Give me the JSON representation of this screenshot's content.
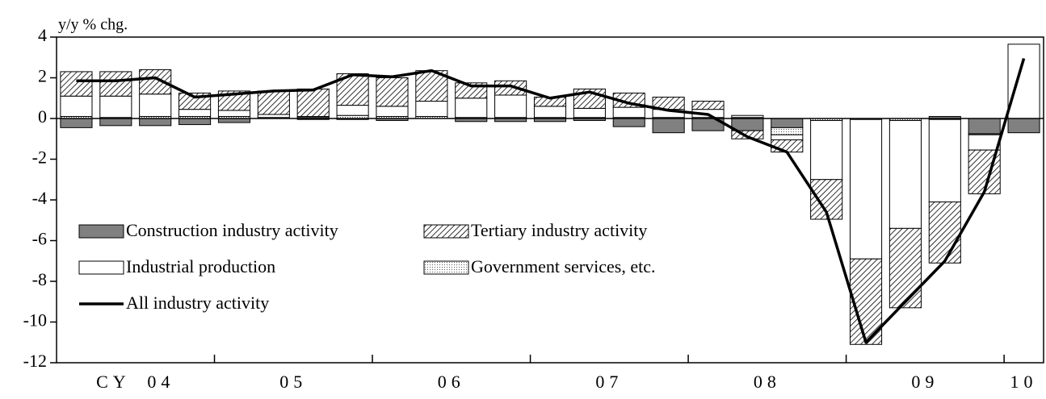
{
  "chart_data": {
    "type": "bar",
    "stacked": true,
    "y_label": "y/y % chg.",
    "categories": [
      "CY 04",
      null,
      null,
      null,
      "05",
      null,
      null,
      null,
      "06",
      null,
      null,
      null,
      "07",
      null,
      null,
      null,
      "08",
      null,
      null,
      null,
      "09",
      null,
      null,
      null,
      "10"
    ],
    "ylim": [
      4,
      -12
    ],
    "yticks": [
      4,
      2,
      0,
      -2,
      -4,
      -6,
      -8,
      -10,
      -12
    ],
    "series": [
      {
        "name": "Construction industry activity",
        "color": "#808080",
        "pattern": "solid",
        "values": [
          -0.45,
          -0.35,
          -0.35,
          -0.3,
          -0.2,
          0,
          -0.05,
          -0.05,
          -0.1,
          0,
          -0.15,
          -0.15,
          -0.15,
          -0.1,
          -0.4,
          -0.7,
          -0.6,
          -0.6,
          -0.45,
          0,
          0,
          0,
          0.1,
          -0.75,
          -0.7
        ]
      },
      {
        "name": "Government services, etc.",
        "color": "#ffffff",
        "pattern": "dots",
        "values": [
          0.1,
          0.05,
          0.1,
          0.1,
          0.1,
          0.05,
          0.05,
          0.15,
          0.1,
          0.1,
          0.05,
          0.05,
          0.05,
          0.05,
          0.05,
          0.05,
          0.05,
          0.05,
          -0.35,
          -0.1,
          -0.05,
          -0.1,
          -0.05,
          -0.05,
          0
        ]
      },
      {
        "name": "Industrial production",
        "color": "#ffffff",
        "pattern": "solid",
        "values": [
          1.0,
          1.05,
          1.1,
          0.35,
          0.3,
          0.15,
          0.05,
          0.5,
          0.5,
          0.75,
          0.95,
          1.1,
          0.55,
          0.45,
          0.5,
          0.4,
          0.4,
          0.1,
          -0.25,
          -2.9,
          -6.85,
          -5.3,
          -4.05,
          -0.75,
          3.65
        ]
      },
      {
        "name": "Tertiary industry activity",
        "color": "#ffffff",
        "pattern": "diagonal",
        "values": [
          1.2,
          1.2,
          1.2,
          0.8,
          0.95,
          1.15,
          1.35,
          1.55,
          1.4,
          1.5,
          0.75,
          0.7,
          0.45,
          0.95,
          0.7,
          0.6,
          0.4,
          -0.4,
          -0.6,
          -1.95,
          -4.2,
          -3.9,
          -3.0,
          -2.15,
          0
        ]
      },
      {
        "name": "All industry activity",
        "type": "line",
        "color": "#000000",
        "values": [
          1.85,
          1.85,
          2.0,
          1.05,
          1.2,
          1.35,
          1.4,
          2.15,
          2.05,
          2.35,
          1.6,
          1.6,
          1.0,
          1.3,
          0.75,
          0.4,
          0.2,
          -0.9,
          -1.65,
          -4.6,
          -11.0,
          -9.0,
          -7.0,
          -3.6,
          2.95
        ]
      }
    ]
  }
}
